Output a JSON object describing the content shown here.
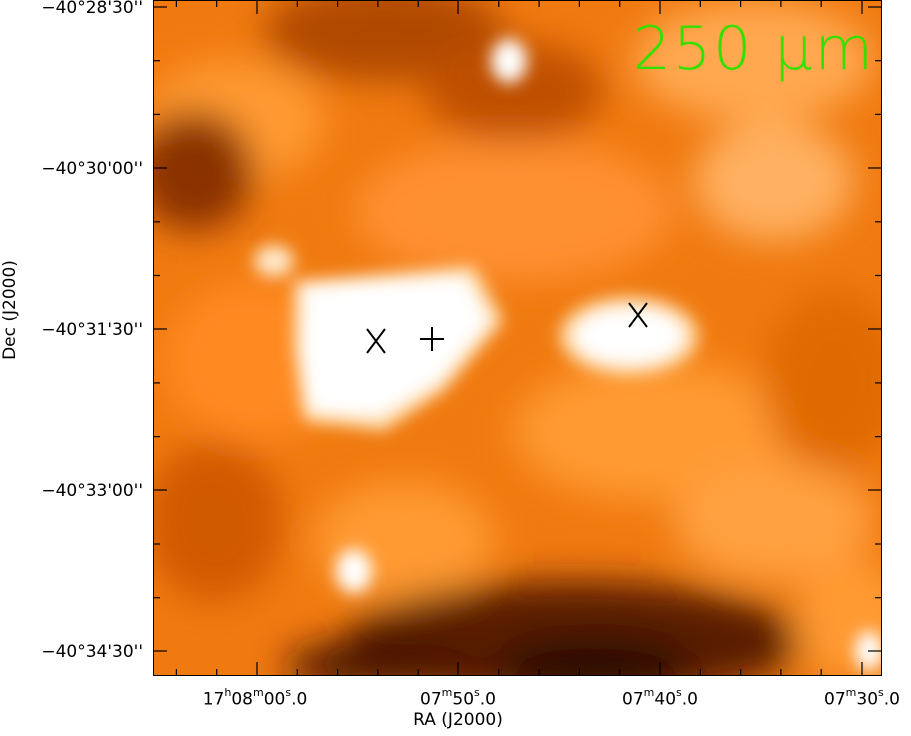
{
  "band_label": "250 μm",
  "axes": {
    "xlabel": "RA (J2000)",
    "ylabel": "Dec (J2000)",
    "yticks": [
      "−40°28'30''",
      "−40°30'00''",
      "−40°31'30''",
      "−40°33'00''",
      "−40°34'30''"
    ],
    "xticks": [
      {
        "h": "17",
        "hu": "h",
        "m": "08",
        "mu": "m",
        "s": "00",
        "su": "s",
        "f": ".0"
      },
      {
        "m": "07",
        "mu": "m",
        "s": "50",
        "su": "s",
        "f": ".0"
      },
      {
        "m": "07",
        "mu": "m",
        "s": "40",
        "su": "s",
        "f": ".0"
      },
      {
        "m": "07",
        "mu": "m",
        "s": "30",
        "su": "s",
        "f": ".0"
      }
    ]
  },
  "colormap": [
    "#2a0a00",
    "#5a2000",
    "#a04000",
    "#e06000",
    "#ff8400",
    "#ffa040",
    "#ffd090",
    "#ffffff"
  ],
  "markers": [
    {
      "type": "x",
      "label": "source-1"
    },
    {
      "type": "plus",
      "label": "source-center"
    },
    {
      "type": "x",
      "label": "source-2"
    }
  ]
}
